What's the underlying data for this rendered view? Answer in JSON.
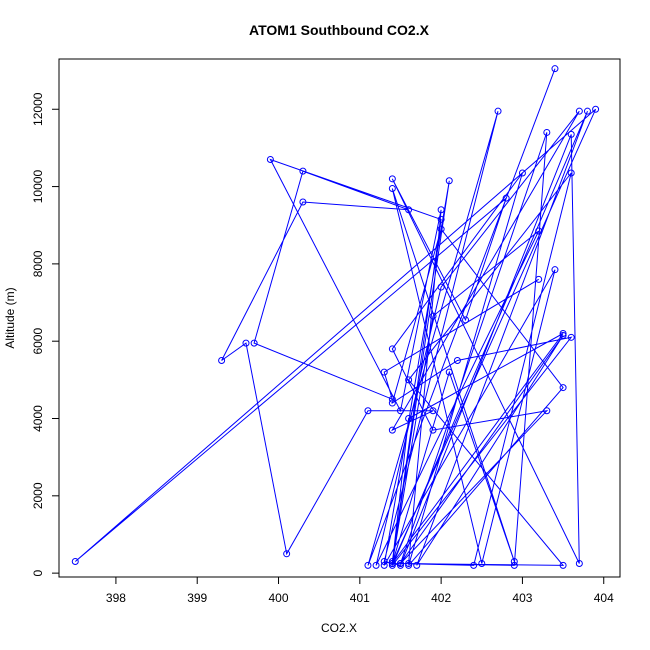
{
  "chart_data": {
    "type": "line",
    "title": "ATOM1 Southbound CO2.X",
    "xlabel": "CO2.X",
    "ylabel": "Altitude (m)",
    "xlim": [
      397.3,
      404.2
    ],
    "ylim": [
      -100,
      13300
    ],
    "xticks": [
      398,
      399,
      400,
      401,
      402,
      403,
      404
    ],
    "yticks": [
      0,
      2000,
      4000,
      6000,
      8000,
      10000,
      12000
    ],
    "grid": false,
    "color": "#0000ff",
    "marker": "open-circle",
    "series": [
      {
        "x": [
          403.4,
          401.1,
          402.7,
          401.3,
          401.5,
          403.6,
          403.7,
          401.4,
          402.3,
          402.8,
          397.5,
          403.9,
          401.4,
          402.1,
          402.9,
          401.4,
          402.5,
          403.4,
          401.3,
          402.1,
          401.4,
          402.0,
          399.9,
          401.5,
          402.0,
          401.6,
          402.9,
          403.3,
          401.5,
          403.5,
          401.7,
          403.8,
          401.4,
          403.6,
          402.2,
          401.4,
          402.0,
          403.5,
          401.6,
          403.0,
          401.4,
          401.9,
          403.3,
          401.5,
          402.4,
          403.6,
          401.6,
          403.5,
          401.4,
          401.6,
          403.5,
          401.4,
          401.9,
          403.2,
          401.2,
          402.0,
          403.7,
          401.4,
          401.9,
          401.1,
          400.1,
          399.6,
          399.3,
          400.3,
          401.6,
          400.3,
          399.7,
          401.4,
          401.3,
          403.2
        ],
        "y": [
          13050,
          200,
          11950,
          300,
          200,
          11350,
          250,
          10200,
          6550,
          9700,
          300,
          12000,
          250,
          5200,
          300,
          9950,
          250,
          7850,
          200,
          10150,
          300,
          9150,
          10700,
          4200,
          9400,
          250,
          200,
          11400,
          250,
          6150,
          200,
          11950,
          200,
          6100,
          5500,
          4400,
          8900,
          4800,
          200,
          10350,
          5800,
          3700,
          4200,
          250,
          200,
          10350,
          5000,
          200,
          250,
          4000,
          6200,
          250,
          6650,
          8850,
          200,
          7400,
          11950,
          3700,
          4200,
          4200,
          500,
          5950,
          5500,
          9600,
          9400,
          10400,
          5950,
          4500,
          5200,
          7600
        ]
      }
    ]
  }
}
